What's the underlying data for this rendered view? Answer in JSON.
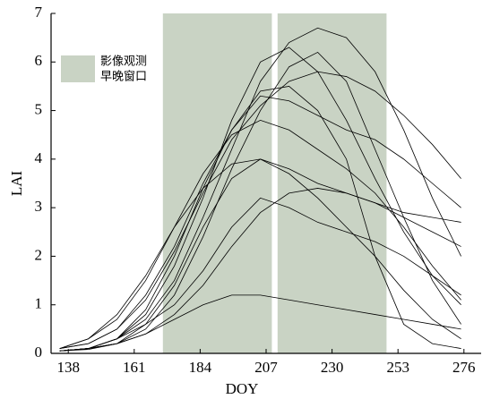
{
  "chart_data": {
    "type": "line",
    "x_label": "DOY",
    "y_label": "LAI",
    "window_label": [
      "影像观测",
      "早晚窗口"
    ],
    "window_color": "#c9d3c4",
    "windows": [
      [
        171,
        209
      ],
      [
        211,
        249
      ]
    ],
    "xlim": [
      132,
      282
    ],
    "ylim": [
      0,
      7
    ],
    "xticks": [
      138,
      161,
      184,
      207,
      230,
      253,
      276
    ],
    "yticks": [
      0,
      1,
      2,
      3,
      4,
      5,
      6,
      7
    ],
    "x": [
      135,
      145,
      155,
      165,
      175,
      185,
      195,
      205,
      215,
      225,
      235,
      245,
      255,
      265,
      275
    ],
    "series": [
      {
        "color": "#000000",
        "values": [
          0.05,
          0.1,
          0.3,
          0.8,
          1.8,
          3.2,
          4.8,
          6.0,
          6.3,
          5.8,
          4.8,
          3.6,
          2.5,
          1.6,
          1.0
        ]
      },
      {
        "color": "#000000",
        "values": [
          0.05,
          0.08,
          0.2,
          0.5,
          1.2,
          2.4,
          3.8,
          5.0,
          5.9,
          6.2,
          5.6,
          4.2,
          2.8,
          1.5,
          0.6
        ]
      },
      {
        "color": "#000000",
        "values": [
          0.1,
          0.2,
          0.5,
          1.2,
          2.2,
          3.5,
          4.6,
          5.3,
          5.2,
          4.9,
          4.6,
          4.4,
          4.0,
          3.5,
          3.0
        ]
      },
      {
        "color": "#000000",
        "values": [
          0.05,
          0.1,
          0.3,
          0.9,
          2.0,
          3.4,
          4.6,
          5.4,
          5.5,
          5.0,
          4.0,
          2.0,
          0.6,
          0.2,
          0.1
        ]
      },
      {
        "color": "#000000",
        "values": [
          0.05,
          0.1,
          0.2,
          0.6,
          1.4,
          2.6,
          3.6,
          4.0,
          3.8,
          3.5,
          3.3,
          3.1,
          2.9,
          2.8,
          2.7
        ]
      },
      {
        "color": "#000000",
        "values": [
          0.1,
          0.3,
          0.7,
          1.5,
          2.6,
          3.7,
          4.5,
          4.8,
          4.6,
          4.2,
          3.8,
          3.3,
          2.6,
          1.8,
          1.1
        ]
      },
      {
        "color": "#000000",
        "values": [
          0.05,
          0.1,
          0.3,
          0.6,
          1.0,
          1.7,
          2.6,
          3.2,
          3.0,
          2.7,
          2.5,
          2.3,
          2.0,
          1.6,
          1.2
        ]
      },
      {
        "color": "#000000",
        "values": [
          0.05,
          0.1,
          0.2,
          0.4,
          0.7,
          1.0,
          1.2,
          1.2,
          1.1,
          1.0,
          0.9,
          0.8,
          0.7,
          0.6,
          0.5
        ]
      },
      {
        "color": "#000000",
        "values": [
          0.1,
          0.2,
          0.5,
          1.1,
          2.1,
          3.3,
          4.4,
          5.1,
          5.6,
          5.8,
          5.7,
          5.4,
          4.9,
          4.3,
          3.6
        ]
      },
      {
        "color": "#000000",
        "values": [
          0.05,
          0.1,
          0.3,
          0.7,
          1.5,
          2.8,
          4.2,
          5.6,
          6.4,
          6.7,
          6.5,
          5.8,
          4.6,
          3.2,
          2.0
        ]
      },
      {
        "color": "#000000",
        "values": [
          0.1,
          0.3,
          0.8,
          1.6,
          2.6,
          3.4,
          3.9,
          4.0,
          3.7,
          3.2,
          2.6,
          2.0,
          1.3,
          0.7,
          0.3
        ]
      },
      {
        "color": "#000000",
        "values": [
          0.05,
          0.1,
          0.2,
          0.4,
          0.8,
          1.4,
          2.2,
          2.9,
          3.3,
          3.4,
          3.3,
          3.1,
          2.8,
          2.5,
          2.2
        ]
      }
    ]
  }
}
